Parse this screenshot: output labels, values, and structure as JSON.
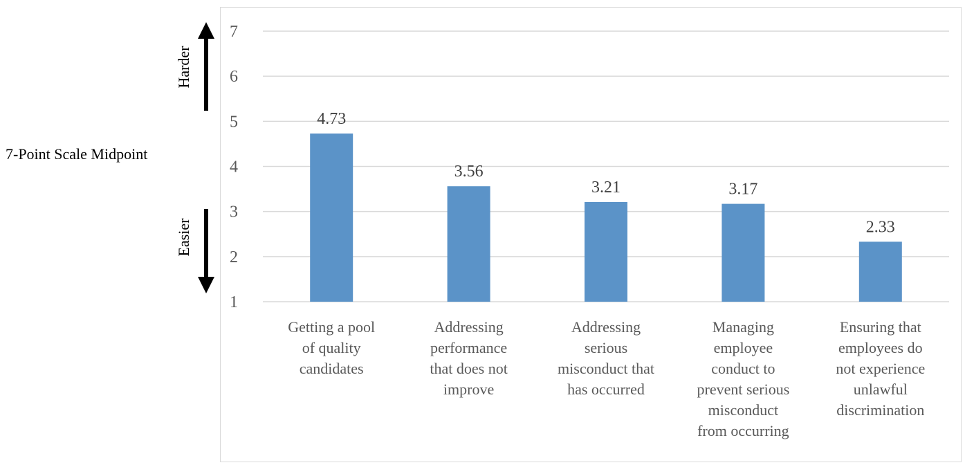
{
  "chart_data": {
    "type": "bar",
    "categories": [
      [
        "Getting a pool",
        "of quality",
        "candidates"
      ],
      [
        "Addressing",
        "performance",
        "that does not",
        "improve"
      ],
      [
        "Addressing",
        "serious",
        "misconduct that",
        "has occurred"
      ],
      [
        "Managing",
        "employee",
        "conduct to",
        "prevent serious",
        "misconduct",
        "from occurring"
      ],
      [
        "Ensuring that",
        "employees do",
        "not experience",
        "unlawful",
        "discrimination"
      ]
    ],
    "values": [
      4.73,
      3.56,
      3.21,
      3.17,
      2.33
    ],
    "data_labels": [
      "4.73",
      "3.56",
      "3.21",
      "3.17",
      "2.33"
    ],
    "ylim": [
      1,
      7
    ],
    "yticks": [
      1,
      2,
      3,
      4,
      5,
      6,
      7
    ],
    "grid": true,
    "bar_color": "#5b93c8",
    "grid_color": "#d9d9d9",
    "annotations": {
      "midpoint": "7-Point Scale Midpoint",
      "harder": "Harder",
      "easier": "Easier"
    }
  }
}
